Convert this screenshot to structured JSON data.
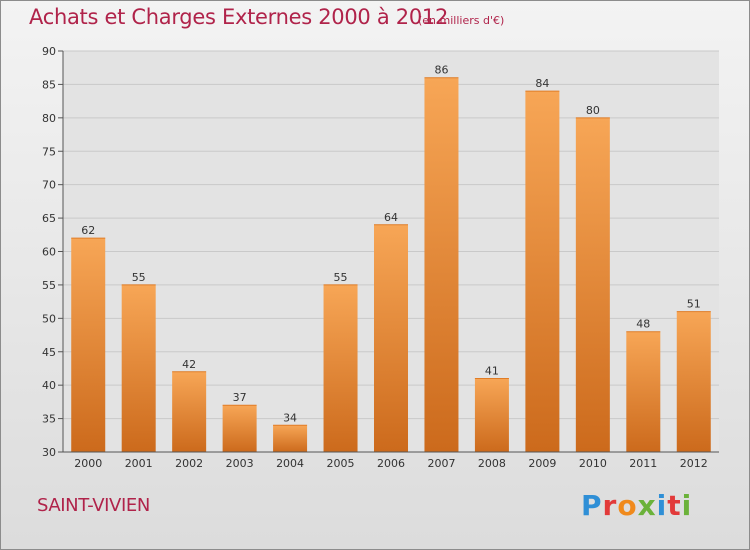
{
  "header": {
    "title": "Achats et Charges Externes 2000 à 2012",
    "subtitle": "(en milliers d'€)"
  },
  "footer": {
    "location": "SAINT-VIVIEN",
    "logo_text": "Proxiti"
  },
  "colors": {
    "title": "#b0234a",
    "bar_top": "#f7a656",
    "bar_bottom": "#cc6a1c",
    "plot_background": "#e3e3e3",
    "grid": "#c9c9c9"
  },
  "chart_data": {
    "type": "bar",
    "title": "Achats et Charges Externes 2000 à 2012",
    "subtitle": "(en milliers d'€)",
    "categories": [
      "2000",
      "2001",
      "2002",
      "2003",
      "2004",
      "2005",
      "2006",
      "2007",
      "2008",
      "2009",
      "2010",
      "2011",
      "2012"
    ],
    "values": [
      62,
      55,
      42,
      37,
      34,
      55,
      64,
      86,
      41,
      84,
      80,
      48,
      51
    ],
    "ylim": [
      30,
      90
    ],
    "yticks": [
      30,
      35,
      40,
      45,
      50,
      55,
      60,
      65,
      70,
      75,
      80,
      85,
      90
    ],
    "grid": true,
    "data_labels": true
  }
}
